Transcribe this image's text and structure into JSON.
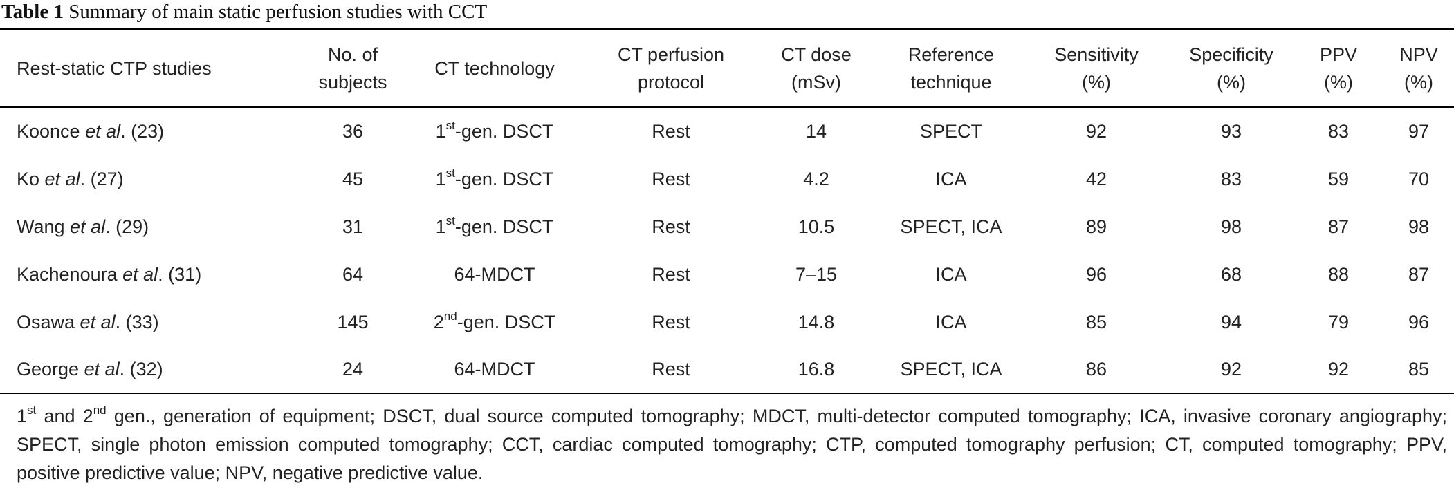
{
  "table": {
    "title": {
      "label": "Table 1",
      "text": "Summary of main static perfusion studies with CCT"
    },
    "headers": [
      [
        "Rest-static CTP studies"
      ],
      [
        "No. of",
        "subjects"
      ],
      [
        "CT technology"
      ],
      [
        "CT perfusion",
        "protocol"
      ],
      [
        "CT dose",
        "(mSv)"
      ],
      [
        "Reference",
        "technique"
      ],
      [
        "Sensitivity",
        "(%)"
      ],
      [
        "Specificity",
        "(%)"
      ],
      [
        "PPV",
        "(%)"
      ],
      [
        "NPV",
        "(%)"
      ]
    ],
    "rows": [
      {
        "study": [
          "Koonce ",
          "et al",
          ". (23)"
        ],
        "subjects": 36,
        "technology": [
          "1",
          "st",
          "-gen. DSCT"
        ],
        "protocol": "Rest",
        "dose": 14,
        "reference": "SPECT",
        "sensitivity": 92,
        "specificity": 93,
        "ppv": 83,
        "npv": 97
      },
      {
        "study": [
          "Ko ",
          "et al",
          ". (27)"
        ],
        "subjects": 45,
        "technology": [
          "1",
          "st",
          "-gen. DSCT"
        ],
        "protocol": "Rest",
        "dose": 4.2,
        "reference": "ICA",
        "sensitivity": 42,
        "specificity": 83,
        "ppv": 59,
        "npv": 70
      },
      {
        "study": [
          "Wang ",
          "et al",
          ". (29)"
        ],
        "subjects": 31,
        "technology": [
          "1",
          "st",
          "-gen. DSCT"
        ],
        "protocol": "Rest",
        "dose": 10.5,
        "reference": "SPECT, ICA",
        "sensitivity": 89,
        "specificity": 98,
        "ppv": 87,
        "npv": 98
      },
      {
        "study": [
          "Kachenoura ",
          "et al",
          ". (31)"
        ],
        "subjects": 64,
        "technology": [
          "64-MDCT"
        ],
        "protocol": "Rest",
        "dose": "7–15",
        "reference": "ICA",
        "sensitivity": 96,
        "specificity": 68,
        "ppv": 88,
        "npv": 87
      },
      {
        "study": [
          "Osawa ",
          "et al",
          ". (33)"
        ],
        "subjects": 145,
        "technology": [
          "2",
          "nd",
          "-gen. DSCT"
        ],
        "protocol": "Rest",
        "dose": 14.8,
        "reference": "ICA",
        "sensitivity": 85,
        "specificity": 94,
        "ppv": 79,
        "npv": 96
      },
      {
        "study": [
          "George ",
          "et al",
          ". (32)"
        ],
        "subjects": 24,
        "technology": [
          "64-MDCT"
        ],
        "protocol": "Rest",
        "dose": 16.8,
        "reference": "SPECT, ICA",
        "sensitivity": 86,
        "specificity": 92,
        "ppv": 92,
        "npv": 85
      }
    ],
    "footnote": [
      "1",
      "st",
      " and 2",
      "nd",
      " gen., generation of equipment; DSCT, dual source computed tomography; MDCT, multi-detector computed tomography; ICA, invasive coronary angiography; SPECT, single photon emission computed tomography; CCT, cardiac computed tomography; CTP, computed tomography perfusion; CT, computed tomography; PPV, positive predictive value; NPV, negative predictive value."
    ]
  }
}
